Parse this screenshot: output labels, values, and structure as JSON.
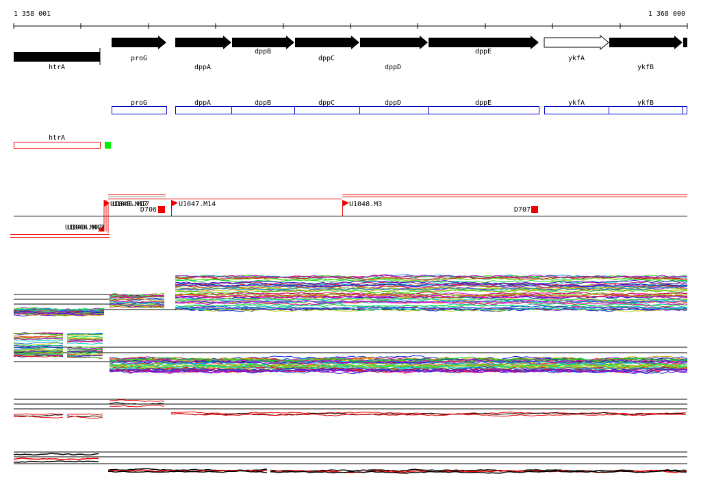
{
  "ruler": {
    "start": "1 358 001",
    "end": "1 368 000"
  },
  "genes": [
    "htrA",
    "proG",
    "dppA",
    "dppB",
    "dppC",
    "dppD",
    "dppE",
    "ykfA",
    "ykfB"
  ],
  "cds": [
    "proG",
    "dppA",
    "dppB",
    "dppC",
    "dppD",
    "dppE",
    "ykfA",
    "ykfB"
  ],
  "operons": [
    "htrA"
  ],
  "transcripts": [
    "U1045.M17",
    "U1046.M17",
    "D706",
    "U1047.M14",
    "U1048.M3",
    "D707",
    "U1043.M47",
    "U1044.M47"
  ]
}
